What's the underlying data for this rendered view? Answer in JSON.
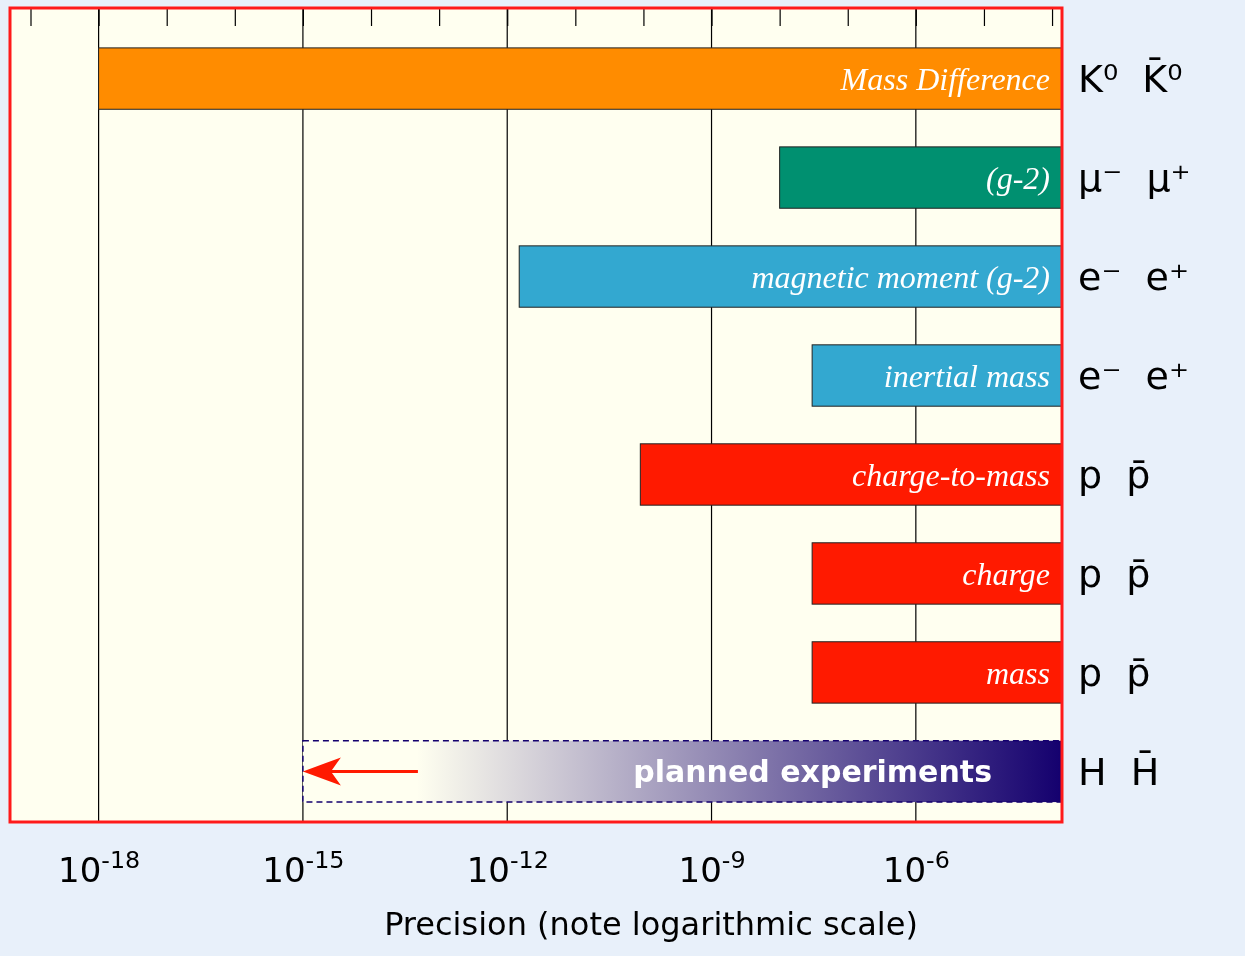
{
  "chart_data": {
    "type": "bar",
    "orientation": "horizontal",
    "log": "x",
    "grid": "x",
    "xlabel": "Precision (note logarithmic scale)",
    "categories": [
      "K⁰  K̄⁰",
      "μ⁻  μ⁺",
      "e⁻  e⁺",
      "e⁻  e⁺",
      "p  p̄",
      "p  p̄",
      "p  p̄",
      "H  H̄"
    ],
    "xlim": [
      5e-20,
      0.00014
    ],
    "xticks": [
      {
        "value": 1e-18,
        "label": "10$^{-18}$"
      },
      {
        "value": 1e-15,
        "label": "10$^{-15}$"
      },
      {
        "value": 1e-12,
        "label": "10$^{-12}$"
      },
      {
        "value": 1e-09,
        "label": "10$^{-9}$"
      },
      {
        "value": 1e-06,
        "label": "10$^{-6}$"
      }
    ],
    "series": [
      {
        "colors": [
          "#ff8c00",
          "#009070",
          "#33a8d0",
          "#33a8d0",
          "#ff1a00",
          "#ff1a00",
          "#ff1a00",
          null
        ],
        "base": [
          1e-18,
          1e-08,
          1.5e-12,
          3e-08,
          9e-11,
          3e-08,
          3e-08,
          null
        ],
        "values": [
          0.00014,
          0.00014,
          0.00014,
          0.00014,
          0.00014,
          0.00014,
          0.00014,
          null
        ],
        "value_labels": [
          "Mass Difference",
          "(g-2)",
          "magnetic  moment  (g-2)",
          "inertial mass",
          "charge-to-mass",
          "charge",
          "mass",
          null
        ]
      },
      {
        "color": "#14006e",
        "line_style": "dashed",
        "base": [
          null,
          null,
          null,
          null,
          null,
          null,
          null,
          1e-15
        ],
        "values": [
          null,
          null,
          null,
          null,
          null,
          null,
          null,
          0.00014
        ],
        "value_labels": [
          null,
          null,
          null,
          null,
          null,
          null,
          null,
          "planned experiments"
        ]
      }
    ]
  }
}
